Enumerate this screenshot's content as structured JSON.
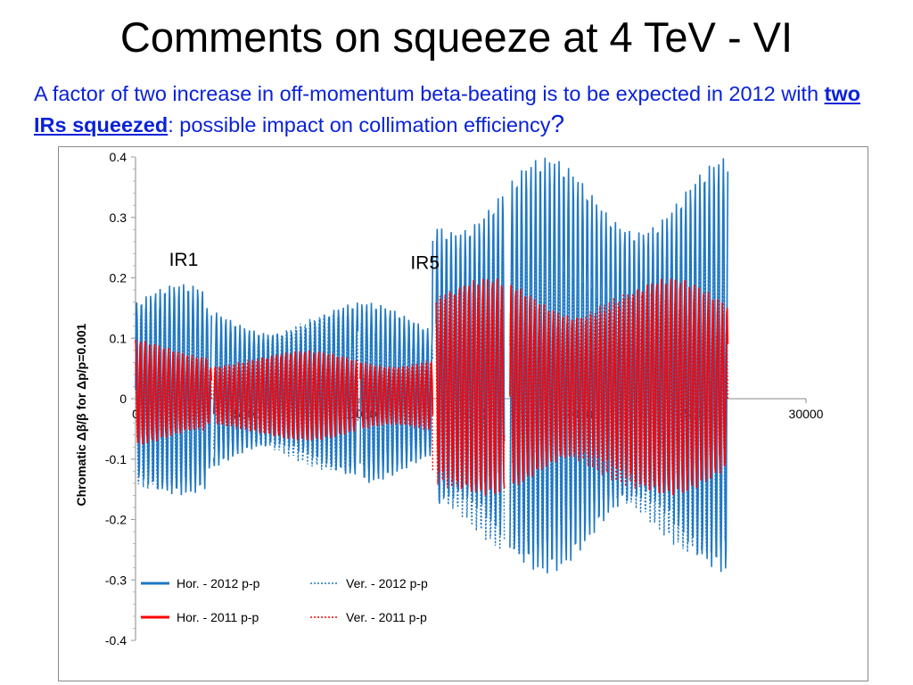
{
  "slide": {
    "title": "Comments on squeeze at 4 TeV - VI",
    "subtitle_part1": "A factor of two increase in off-momentum beta-beating is to be expected in 2012 with ",
    "subtitle_emphasis": "two IRs squeezed",
    "subtitle_part2": ": possible impact on collimation efficiency",
    "subtitle_q": "?"
  },
  "chart_data": {
    "type": "line",
    "ylabel": "Chromatic Δβ/β for Δp/p=0.001",
    "xlim": [
      0,
      30000
    ],
    "ylim": [
      -0.4,
      0.4
    ],
    "xticks": [
      0,
      5000,
      10000,
      15000,
      20000,
      25000,
      30000
    ],
    "yticks": [
      0.4,
      0.3,
      0.2,
      0.1,
      0,
      -0.1,
      -0.2,
      -0.3,
      -0.4
    ],
    "annotations": [
      {
        "text": "IR1",
        "x": 1500,
        "y": 0.22
      },
      {
        "text": "IR5",
        "x": 12300,
        "y": 0.215
      }
    ],
    "legend_position": "bottom-left",
    "series": [
      {
        "name": "Hor. - 2012 p-p",
        "color": "#1f77c4",
        "style": "solid",
        "envelope": [
          {
            "from": 0,
            "to": 3200,
            "max": 0.19,
            "min": -0.16
          },
          {
            "from": 3200,
            "to": 9900,
            "max": 0.16,
            "min": -0.13
          },
          {
            "from": 9900,
            "to": 13300,
            "max": 0.16,
            "min": -0.14
          },
          {
            "from": 13300,
            "to": 26500,
            "max": 0.4,
            "min": -0.29
          }
        ]
      },
      {
        "name": "Ver. - 2012 p-p",
        "color": "#1f77c4",
        "style": "dotted",
        "envelope": [
          {
            "from": 0,
            "to": 3200,
            "max": 0.15,
            "min": -0.15
          },
          {
            "from": 3200,
            "to": 9900,
            "max": 0.14,
            "min": -0.12
          },
          {
            "from": 9900,
            "to": 13300,
            "max": 0.14,
            "min": -0.13
          },
          {
            "from": 13300,
            "to": 26500,
            "max": 0.27,
            "min": -0.26
          }
        ]
      },
      {
        "name": "Hor. - 2011 p-p",
        "color": "#ff0000",
        "style": "solid",
        "envelope": [
          {
            "from": 0,
            "to": 3200,
            "max": 0.1,
            "min": -0.08
          },
          {
            "from": 3200,
            "to": 9900,
            "max": 0.08,
            "min": -0.07
          },
          {
            "from": 9900,
            "to": 13300,
            "max": 0.08,
            "min": -0.07
          },
          {
            "from": 13300,
            "to": 26500,
            "max": 0.2,
            "min": -0.16
          }
        ]
      },
      {
        "name": "Ver. - 2011 p-p",
        "color": "#ff0000",
        "style": "dotted",
        "envelope": [
          {
            "from": 0,
            "to": 3200,
            "max": 0.08,
            "min": -0.08
          },
          {
            "from": 3200,
            "to": 9900,
            "max": 0.07,
            "min": -0.06
          },
          {
            "from": 9900,
            "to": 13300,
            "max": 0.07,
            "min": -0.06
          },
          {
            "from": 13300,
            "to": 26500,
            "max": 0.18,
            "min": -0.15
          }
        ]
      }
    ]
  }
}
